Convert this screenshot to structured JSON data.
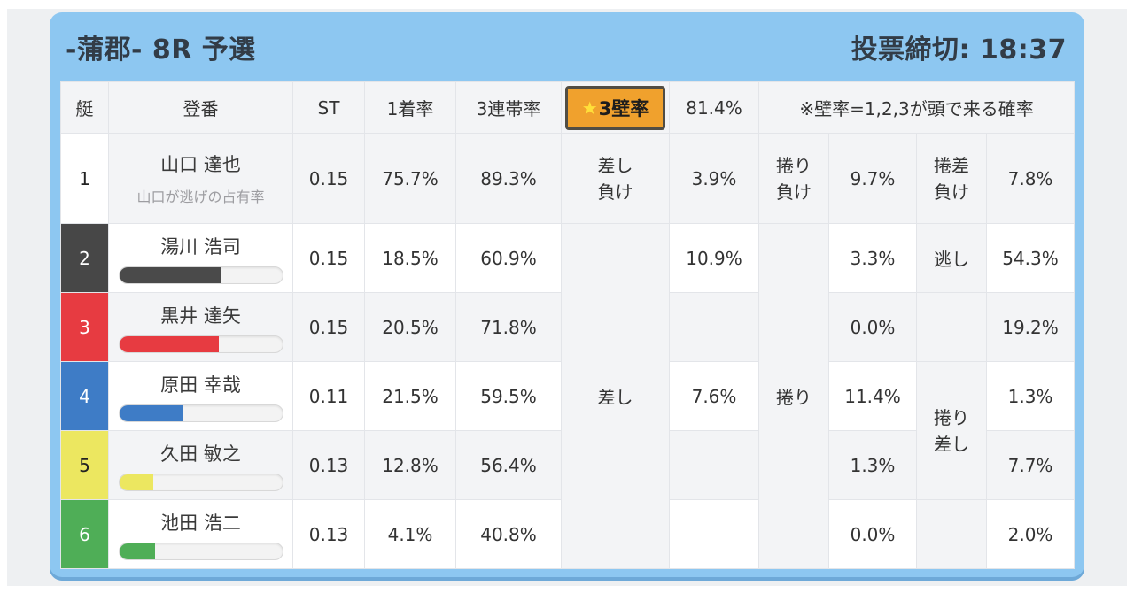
{
  "header": {
    "title": "-蒲郡- 8R 予選",
    "deadline": "投票締切: 18:37"
  },
  "columns": {
    "boat": "艇",
    "racer": "登番",
    "st": "ST",
    "win1": "1着率",
    "top3": "3連帯率"
  },
  "wall": {
    "star": "★",
    "label": "3壁率",
    "value": "81.4%",
    "note": "※壁率=1,2,3が頭で来る確率",
    "chip_bg": "#f0a12d",
    "chip_border": "#514d44"
  },
  "rows": [
    {
      "num": "1",
      "num_bg": "#ffffff",
      "num_fg": "#222222",
      "name": "山口 達也",
      "subtitle": "山口が逃げの占有率",
      "st": "0.15",
      "win1": "75.7%",
      "top3": "89.3%"
    },
    {
      "num": "2",
      "num_bg": "#474747",
      "num_fg": "#ffffff",
      "name": "湯川 浩司",
      "bar": {
        "percent": 62,
        "color": "#4a4a4a"
      },
      "st": "0.15",
      "win1": "18.5%",
      "top3": "60.9%"
    },
    {
      "num": "3",
      "num_bg": "#e73b41",
      "num_fg": "#ffffff",
      "name": "黒井 達矢",
      "bar": {
        "percent": 61,
        "color": "#e73b41"
      },
      "st": "0.15",
      "win1": "20.5%",
      "top3": "71.8%"
    },
    {
      "num": "4",
      "num_bg": "#3e7cc6",
      "num_fg": "#ffffff",
      "name": "原田 幸哉",
      "bar": {
        "percent": 39,
        "color": "#3e7cc6"
      },
      "st": "0.11",
      "win1": "21.5%",
      "top3": "59.5%"
    },
    {
      "num": "5",
      "num_bg": "#ece760",
      "num_fg": "#222222",
      "name": "久田 敏之",
      "bar": {
        "percent": 21,
        "color": "#ece760"
      },
      "st": "0.13",
      "win1": "12.8%",
      "top3": "56.4%"
    },
    {
      "num": "6",
      "num_bg": "#4fae57",
      "num_fg": "#ffffff",
      "name": "池田 浩二",
      "bar": {
        "percent": 22,
        "color": "#4fae57"
      },
      "st": "0.13",
      "win1": "4.1%",
      "top3": "40.8%"
    }
  ],
  "kimarite": {
    "row1": {
      "sashi_make_label": "差し負け",
      "sashi_make_value": "3.9%",
      "makuri_make_label": "捲り負け",
      "makuri_make_value": "9.7%",
      "makurizashi_make_label": "捲差負け",
      "makurizashi_make_value": "7.8%"
    },
    "sashi": {
      "label": "差し",
      "values": [
        "10.9%",
        "",
        "7.6%",
        "",
        ""
      ]
    },
    "makuri": {
      "label": "捲り",
      "values": [
        "3.3%",
        "0.0%",
        "11.4%",
        "1.3%",
        "0.0%"
      ]
    },
    "third": {
      "nogashi_label": "逃し",
      "makurizashi_label": "捲り差し",
      "values": [
        "54.3%",
        "19.2%",
        "1.3%",
        "7.7%",
        "2.0%"
      ]
    }
  }
}
